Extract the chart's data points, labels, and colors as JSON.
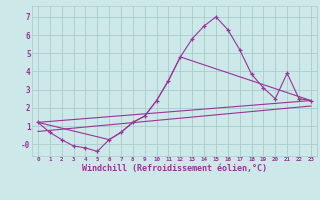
{
  "bg_color": "#cce8e8",
  "grid_color": "#aacccc",
  "line_color": "#993399",
  "xlim": [
    -0.5,
    23.5
  ],
  "ylim": [
    -0.65,
    7.6
  ],
  "yticks": [
    0,
    1,
    2,
    3,
    4,
    5,
    6,
    7
  ],
  "ytick_labels": [
    "-0",
    "1",
    "2",
    "3",
    "4",
    "5",
    "6",
    "7"
  ],
  "xtick_labels": [
    "0",
    "1",
    "2",
    "3",
    "4",
    "5",
    "6",
    "7",
    "8",
    "9",
    "10",
    "11",
    "12",
    "13",
    "14",
    "15",
    "16",
    "17",
    "18",
    "19",
    "20",
    "21",
    "22",
    "23"
  ],
  "xlabel": "Windchill (Refroidissement éolien,°C)",
  "line1_x": [
    0,
    1,
    2,
    3,
    4,
    5,
    6,
    7,
    8,
    9,
    10,
    11,
    12,
    13,
    14,
    15,
    16,
    17,
    18,
    19,
    20,
    21,
    22,
    23
  ],
  "line1_y": [
    1.2,
    0.65,
    0.25,
    -0.1,
    -0.2,
    -0.4,
    0.25,
    0.65,
    1.2,
    1.55,
    2.4,
    3.5,
    4.8,
    5.8,
    6.5,
    7.0,
    6.3,
    5.2,
    3.85,
    3.1,
    2.5,
    3.9,
    2.5,
    2.4
  ],
  "line2_x": [
    0,
    23
  ],
  "line2_y": [
    1.2,
    2.4
  ],
  "line3_x": [
    0,
    6,
    7,
    8,
    9,
    10,
    11,
    12,
    23
  ],
  "line3_y": [
    1.2,
    0.25,
    0.65,
    1.2,
    1.55,
    2.4,
    3.5,
    4.8,
    2.4
  ],
  "line4_x": [
    0,
    23
  ],
  "line4_y": [
    0.7,
    2.1
  ]
}
